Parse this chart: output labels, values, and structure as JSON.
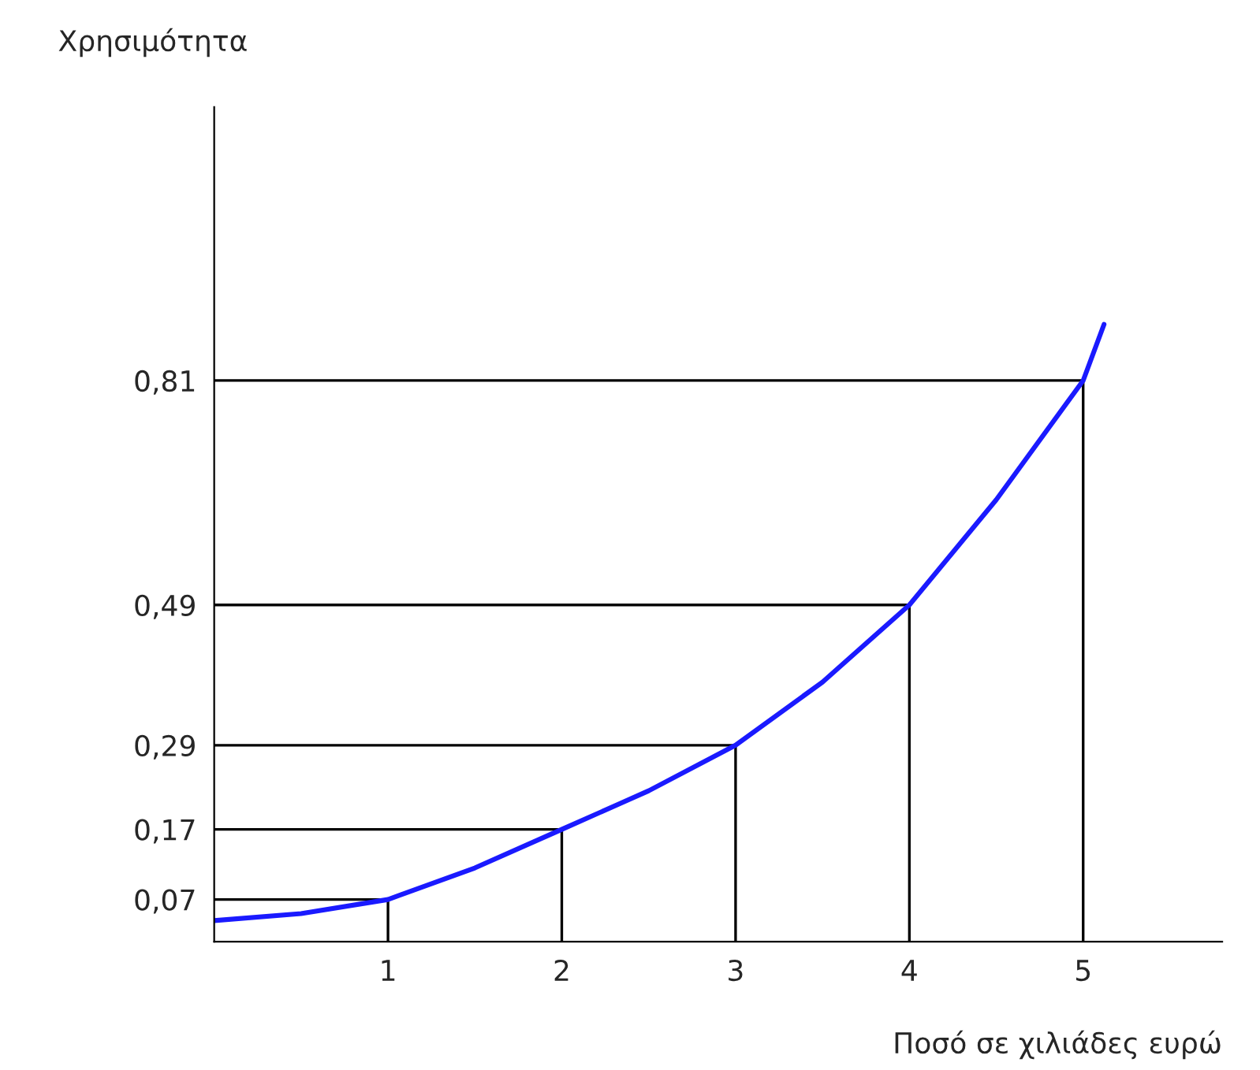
{
  "chart_data": {
    "type": "line",
    "xlabel": "Ποσό σε χιλιάδες ευρώ",
    "ylabel": "Χρησιμότητα",
    "series": [
      {
        "color": "#000000",
        "x": [
          0,
          1,
          1
        ],
        "values": [
          0.07,
          0.07,
          0.01
        ]
      },
      {
        "color": "#000000",
        "x": [
          0,
          2,
          2
        ],
        "values": [
          0.17,
          0.17,
          0.01
        ]
      },
      {
        "color": "#000000",
        "x": [
          0,
          3,
          3
        ],
        "values": [
          0.29,
          0.29,
          0.01
        ]
      },
      {
        "color": "#000000",
        "x": [
          0,
          4,
          4
        ],
        "values": [
          0.49,
          0.49,
          0.01
        ]
      },
      {
        "color": "#000000",
        "x": [
          0,
          5,
          5
        ],
        "values": [
          0.81,
          0.81,
          0.01
        ]
      },
      {
        "color": "#1a1aff",
        "x": [
          0,
          0.5,
          1,
          1.5,
          2,
          2.5,
          3,
          3.5,
          4,
          4.5,
          5,
          5.12
        ],
        "values": [
          0.04,
          0.05,
          0.07,
          0.115,
          0.17,
          0.225,
          0.29,
          0.38,
          0.49,
          0.64,
          0.81,
          0.89
        ]
      }
    ],
    "xlim": [
      0,
      5.8
    ],
    "ylim": [
      0.01,
      1.2
    ],
    "xticks": [
      1,
      2,
      3,
      4,
      5
    ],
    "yticks": [
      {
        "value": 0.07,
        "label": "0,07"
      },
      {
        "value": 0.17,
        "label": "0,17"
      },
      {
        "value": 0.29,
        "label": "0,29"
      },
      {
        "value": 0.49,
        "label": "0,49"
      },
      {
        "value": 0.81,
        "label": "0,81"
      }
    ],
    "grid": false,
    "legend": false,
    "marker": "none",
    "line_style": "solid"
  }
}
